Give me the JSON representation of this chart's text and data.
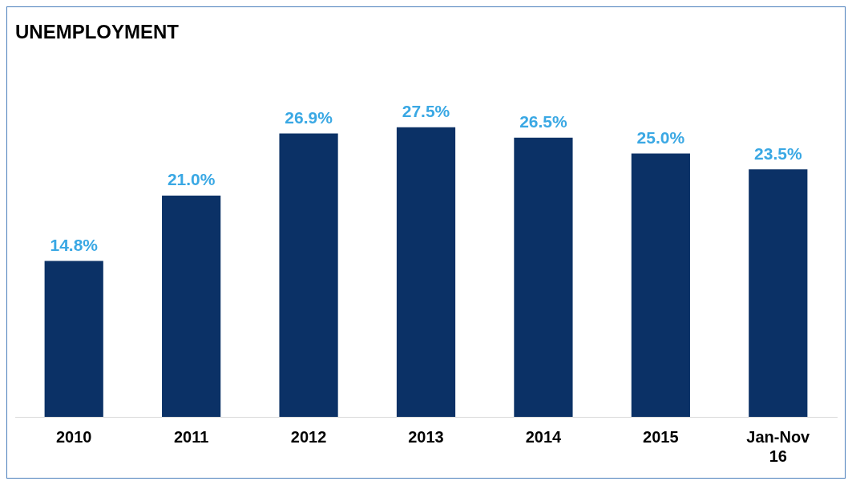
{
  "chart_data": {
    "type": "bar",
    "title": "UNEMPLOYMENT",
    "categories": [
      "2010",
      "2011",
      "2012",
      "2013",
      "2014",
      "2015",
      "Jan-Nov 16"
    ],
    "values": [
      14.8,
      21.0,
      26.9,
      27.5,
      26.5,
      25.0,
      23.5
    ],
    "value_labels": [
      "14.8%",
      "21.0%",
      "26.9%",
      "27.5%",
      "26.5%",
      "25.0%",
      "23.5%"
    ],
    "color": "#0b3166",
    "grid": false,
    "legend": false
  }
}
